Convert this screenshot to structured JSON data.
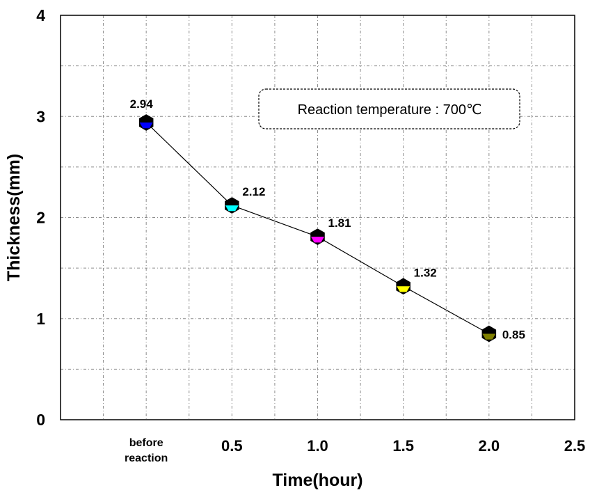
{
  "chart_data": {
    "type": "line",
    "xlabel": "Time(hour)",
    "ylabel": "Thickness(mm)",
    "xlim": [
      -0.5,
      2.5
    ],
    "ylim": [
      0,
      4
    ],
    "x_tick_labels": [
      {
        "x": 0,
        "lines": [
          "before",
          "reaction"
        ]
      },
      {
        "x": 0.5,
        "lines": [
          "0.5"
        ]
      },
      {
        "x": 1.0,
        "lines": [
          "1.0"
        ]
      },
      {
        "x": 1.5,
        "lines": [
          "1.5"
        ]
      },
      {
        "x": 2.0,
        "lines": [
          "2.0"
        ]
      },
      {
        "x": 2.5,
        "lines": [
          "2.5"
        ]
      }
    ],
    "y_ticks": [
      "0",
      "1",
      "2",
      "3",
      "4"
    ],
    "grid": true,
    "annotation": "Reaction temperature : 700℃",
    "series": [
      {
        "points": [
          {
            "x": 0,
            "y": 2.94,
            "label": "2.94",
            "color": "#0000ff"
          },
          {
            "x": 0.5,
            "y": 2.12,
            "label": "2.12",
            "color": "#00ffff"
          },
          {
            "x": 1.0,
            "y": 1.81,
            "label": "1.81",
            "color": "#ff00ff"
          },
          {
            "x": 1.5,
            "y": 1.32,
            "label": "1.32",
            "color": "#ffff00"
          },
          {
            "x": 2.0,
            "y": 0.85,
            "label": "0.85",
            "color": "#808000"
          }
        ]
      }
    ]
  }
}
